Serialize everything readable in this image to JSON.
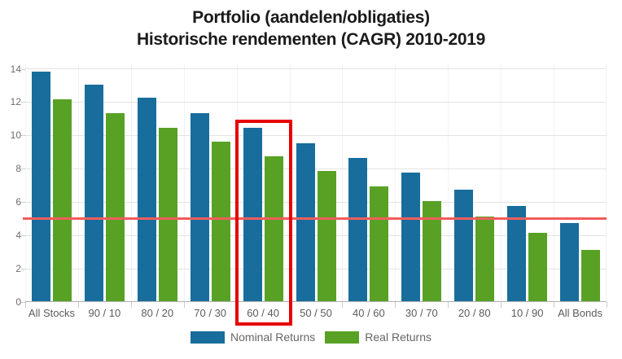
{
  "title": {
    "line1": "Portfolio (aandelen/obligaties)",
    "line2": "Historische rendementen (CAGR) 2010-2019"
  },
  "colors": {
    "nominal": "#186d9c",
    "real": "#58a125",
    "reference_line": "#f25c5c",
    "highlight_box": "#e60000",
    "grid": "#e4e4e4",
    "grid_vertical": "#f2f2f2",
    "axis_line": "#b0b0b0",
    "tick": "#cccccc",
    "axis_text": "#6e6e6e",
    "title_text": "#1a1a1a"
  },
  "legend": {
    "items": [
      {
        "label": "Nominal Returns",
        "color_key": "nominal"
      },
      {
        "label": "Real Returns",
        "color_key": "real"
      }
    ]
  },
  "chart_data": {
    "type": "bar",
    "title": "Portfolio (aandelen/obligaties) — Historische rendementen (CAGR) 2010-2019",
    "categories": [
      "All Stocks",
      "90 / 10",
      "80 / 20",
      "70 / 30",
      "60 / 40",
      "50 / 50",
      "40 / 60",
      "30 / 70",
      "20 / 80",
      "10 / 90",
      "All Bonds"
    ],
    "series": [
      {
        "name": "Nominal Returns",
        "color": "#186d9c",
        "values": [
          13.8,
          13.0,
          12.2,
          11.3,
          10.4,
          9.5,
          8.6,
          7.7,
          6.7,
          5.7,
          4.7
        ]
      },
      {
        "name": "Real Returns",
        "color": "#58a125",
        "values": [
          12.1,
          11.3,
          10.4,
          9.6,
          8.7,
          7.8,
          6.9,
          6.0,
          5.1,
          4.1,
          3.1
        ]
      }
    ],
    "xlabel": "",
    "ylabel": "",
    "ylim": [
      0,
      14.32
    ],
    "yticks": [
      0,
      2,
      4,
      6,
      8,
      10,
      12,
      14
    ],
    "grid": true,
    "legend_position": "bottom",
    "reference_line": {
      "value": 5
    },
    "highlight": {
      "category": "60 / 40",
      "index": 4
    }
  }
}
